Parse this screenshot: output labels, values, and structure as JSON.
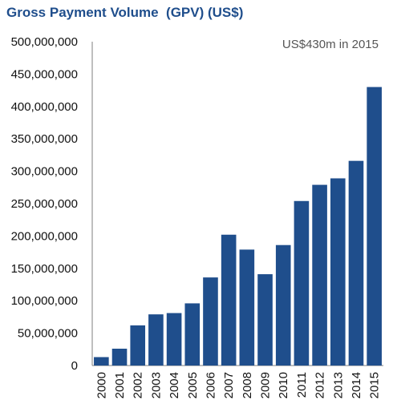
{
  "chart_data": {
    "type": "bar",
    "title": "Gross Payment Volume  (GPV) (US$)",
    "annotation": "US$430m  in  2015",
    "xlabel": "",
    "ylabel": "",
    "categories": [
      "2000",
      "2001",
      "2002",
      "2003",
      "2004",
      "2005",
      "2006",
      "2007",
      "2008",
      "2009",
      "2010",
      "2011",
      "2012",
      "2013",
      "2014",
      "2015"
    ],
    "values": [
      13000000,
      26000000,
      62000000,
      79000000,
      81000000,
      96000000,
      136000000,
      202000000,
      179000000,
      141000000,
      186000000,
      254000000,
      279000000,
      289000000,
      316000000,
      430000000
    ],
    "ylim": [
      0,
      500000000
    ],
    "yticks": [
      0,
      50000000,
      100000000,
      150000000,
      200000000,
      250000000,
      300000000,
      350000000,
      400000000,
      450000000,
      500000000
    ],
    "ytick_labels": [
      "0",
      "50,000,000",
      "100,000,000",
      "150,000,000",
      "200,000,000",
      "250,000,000",
      "300,000,000",
      "350,000,000",
      "400,000,000",
      "450,000,000",
      "500,000,000"
    ],
    "grid": false,
    "legend": "none",
    "bar_color": "#1f4e8c",
    "title_color": "#1f4e8c",
    "axis_color": "#7f7f7f"
  }
}
